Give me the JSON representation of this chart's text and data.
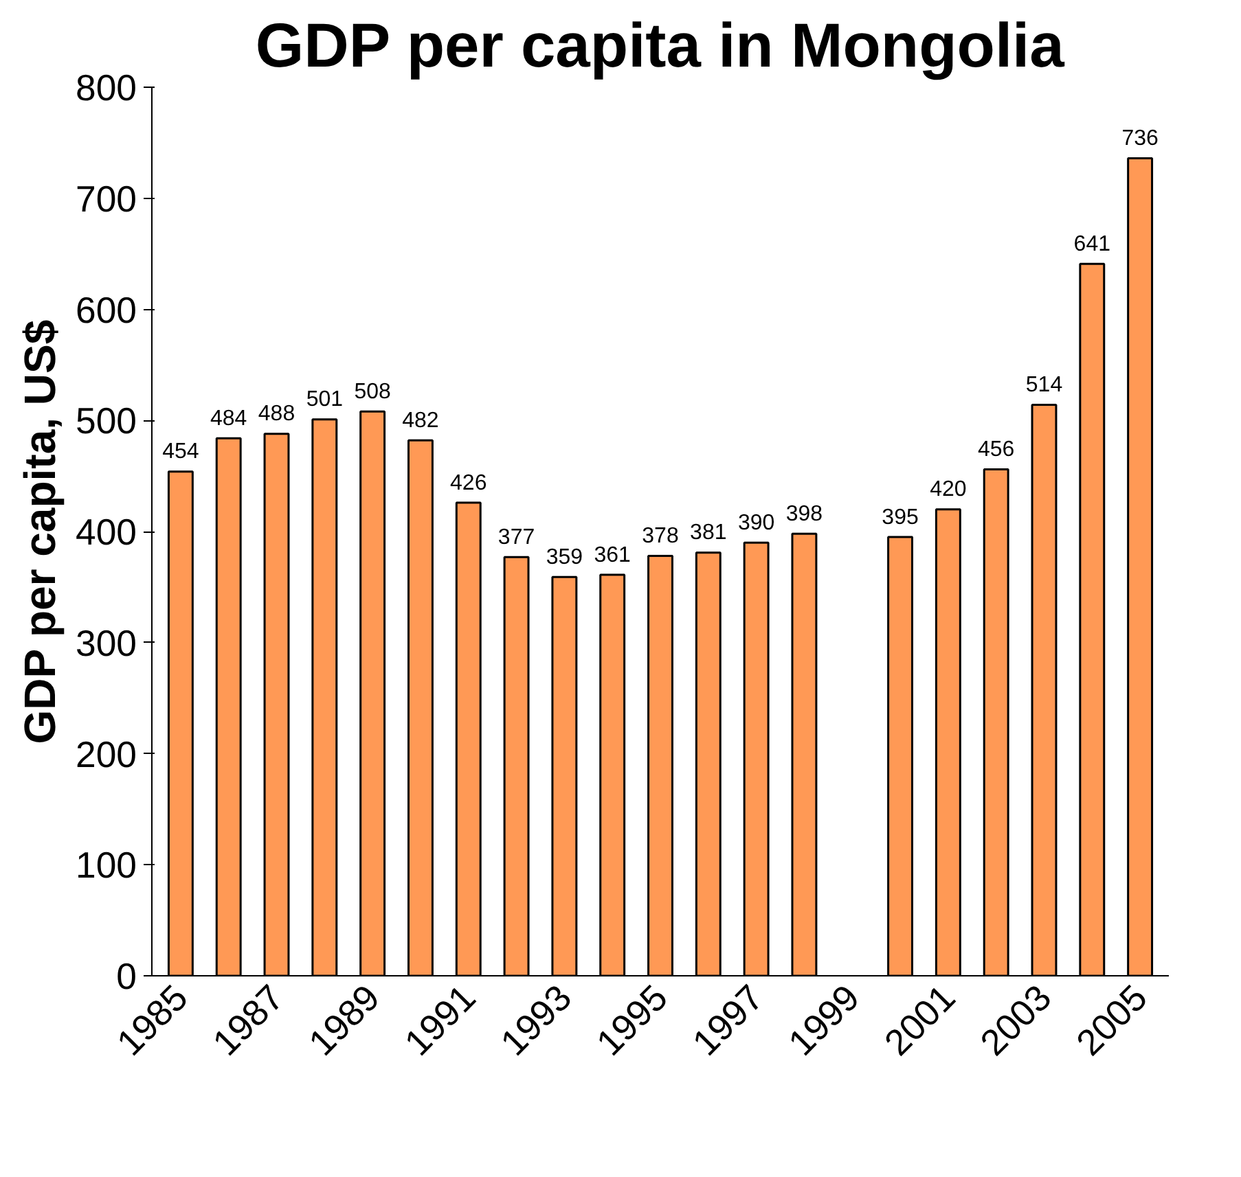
{
  "chart_data": {
    "type": "bar",
    "title": "GDP per capita in Mongolia",
    "ylabel": "GDP per capita, US$",
    "categories": [
      "1985",
      null,
      "1987",
      null,
      "1989",
      null,
      "1991",
      null,
      "1993",
      null,
      "1995",
      null,
      "1997",
      null,
      "1999",
      null,
      "2001",
      null,
      "2003",
      null,
      "2005"
    ],
    "values": [
      454,
      484,
      488,
      501,
      508,
      482,
      426,
      377,
      359,
      361,
      378,
      381,
      390,
      398,
      null,
      395,
      420,
      456,
      514,
      641,
      736
    ],
    "color": "#ff9955",
    "ylim": [
      0,
      800
    ],
    "yticks": [
      0,
      100,
      200,
      300,
      400,
      500,
      600,
      700,
      800
    ],
    "grid": false,
    "data_labels": true
  }
}
